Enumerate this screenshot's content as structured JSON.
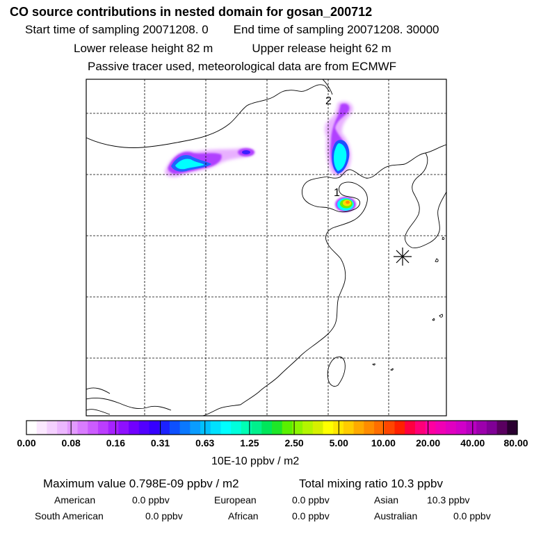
{
  "header": {
    "title": "CO  source contributions in nested domain for gosan_200712",
    "sampling_start": "Start time of sampling 20071208.     0",
    "sampling_end": "End time of sampling 20071208. 30000",
    "lower_release": "Lower release height   82 m",
    "upper_release": "Upper release height   62 m",
    "tracer_note": "Passive tracer used, meteorological data are from ECMWF"
  },
  "chart_data": {
    "type": "heatmap",
    "map_labels": [
      {
        "id": "label_1",
        "text": "1"
      },
      {
        "id": "label_2",
        "text": "2"
      }
    ],
    "receptor_marker": "asterisk-icon",
    "colorbar": {
      "ticks": [
        "0.00",
        "0.08",
        "0.16",
        "0.31",
        "0.63",
        "1.25",
        "2.50",
        "5.00",
        "10.00",
        "20.00",
        "40.00",
        "80.00"
      ],
      "colors": [
        "#ffffff",
        "#fbe8ff",
        "#f4d0ff",
        "#ecb7ff",
        "#e39aff",
        "#d97cff",
        "#cc5cff",
        "#bb3dff",
        "#a622ff",
        "#8e10ff",
        "#7100ff",
        "#5200ff",
        "#3500ff",
        "#1c22ff",
        "#0d50ff",
        "#0a78ff",
        "#0a9cff",
        "#00c0ff",
        "#00e1ff",
        "#00ffff",
        "#00ffdc",
        "#00ffb4",
        "#00f08c",
        "#00e65a",
        "#1ee628",
        "#5af000",
        "#8cf500",
        "#b4f500",
        "#d7f000",
        "#ffff00",
        "#ffe600",
        "#ffcc00",
        "#ffaa00",
        "#ff8c00",
        "#ff6e00",
        "#ff4600",
        "#ff2000",
        "#ff0040",
        "#ff0078",
        "#ff00a0",
        "#f000b4",
        "#e000c0",
        "#d000c8",
        "#b800c0",
        "#9c00ac",
        "#800096",
        "#5a0060",
        "#2a0030"
      ],
      "unit_label": "10E-10 ppbv / m2"
    }
  },
  "summary": {
    "maximum_value": "Maximum value  0.798E-09 ppbv / m2",
    "total_mixing_ratio": "Total mixing ratio       10.3 ppbv",
    "regions": [
      {
        "name": "American",
        "value": "0.0 ppbv"
      },
      {
        "name": "European",
        "value": "0.0 ppbv"
      },
      {
        "name": "Asian",
        "value": "10.3 ppbv"
      },
      {
        "name": "South American",
        "value": "0.0 ppbv"
      },
      {
        "name": "African",
        "value": "0.0 ppbv"
      },
      {
        "name": "Australian",
        "value": "0.0 ppbv"
      }
    ]
  }
}
